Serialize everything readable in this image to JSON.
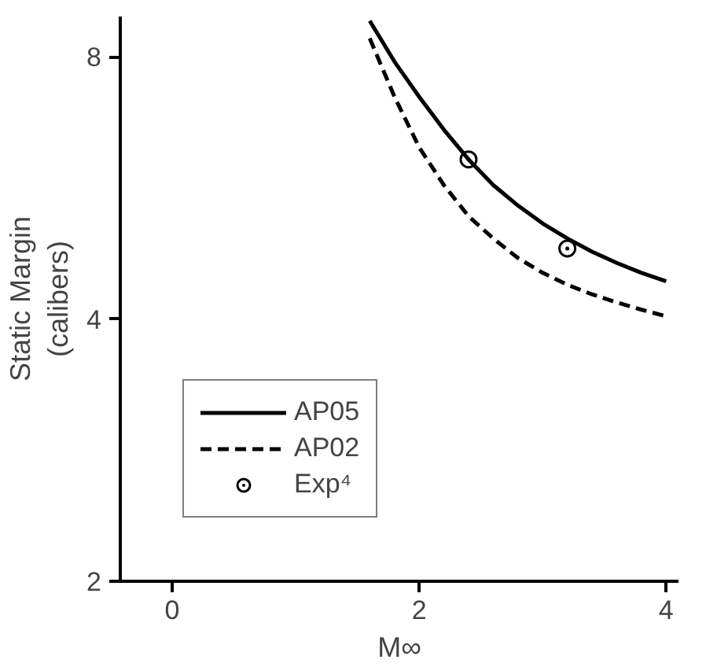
{
  "chart_data": {
    "type": "line",
    "xlabel": "M∞",
    "ylabel": "Static Margin\n(calibers)",
    "xlim": [
      -0.42,
      4.1
    ],
    "xticks": [
      0,
      2,
      4
    ],
    "ylim": [
      2,
      8.9
    ],
    "yticks": [
      2,
      4,
      8
    ],
    "log": "y",
    "grid": false,
    "legend": "bottom left",
    "series": [
      {
        "name": "AP05",
        "color": "#000000",
        "line_style": "solid",
        "x": [
          1.6,
          1.8,
          2.0,
          2.2,
          2.4,
          2.6,
          2.8,
          3.0,
          3.2,
          3.4,
          3.6,
          3.8,
          4.0
        ],
        "values": [
          8.8,
          7.9,
          7.2,
          6.6,
          6.1,
          5.7,
          5.4,
          5.15,
          4.95,
          4.78,
          4.64,
          4.52,
          4.42
        ]
      },
      {
        "name": "AP02",
        "color": "#000000",
        "line_style": "dashed",
        "x": [
          1.6,
          1.8,
          2.0,
          2.2,
          2.4,
          2.6,
          2.8,
          3.0,
          3.2,
          3.4,
          3.6,
          3.8,
          4.0
        ],
        "values": [
          8.4,
          7.2,
          6.3,
          5.7,
          5.25,
          4.95,
          4.7,
          4.52,
          4.38,
          4.27,
          4.18,
          4.1,
          4.03
        ]
      },
      {
        "name": "Exp⁴",
        "color": "#000000",
        "type": "scatter",
        "marker": "circle",
        "x": [
          2.4,
          3.2
        ],
        "values": [
          6.1,
          4.82
        ]
      }
    ]
  }
}
